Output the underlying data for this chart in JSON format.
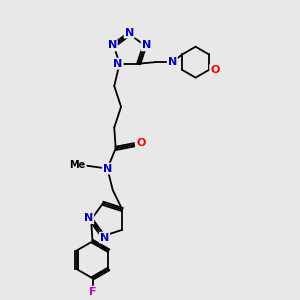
{
  "bg_color": "#e8e8e8",
  "N_color": "#0000cc",
  "O_color": "#ff0000",
  "F_color": "#cc00cc",
  "C_color": "#000000",
  "bond_color": "#000000",
  "lw": 1.3,
  "figsize": [
    3.0,
    3.0
  ],
  "dpi": 100,
  "xlim": [
    0,
    10
  ],
  "ylim": [
    0,
    10
  ]
}
